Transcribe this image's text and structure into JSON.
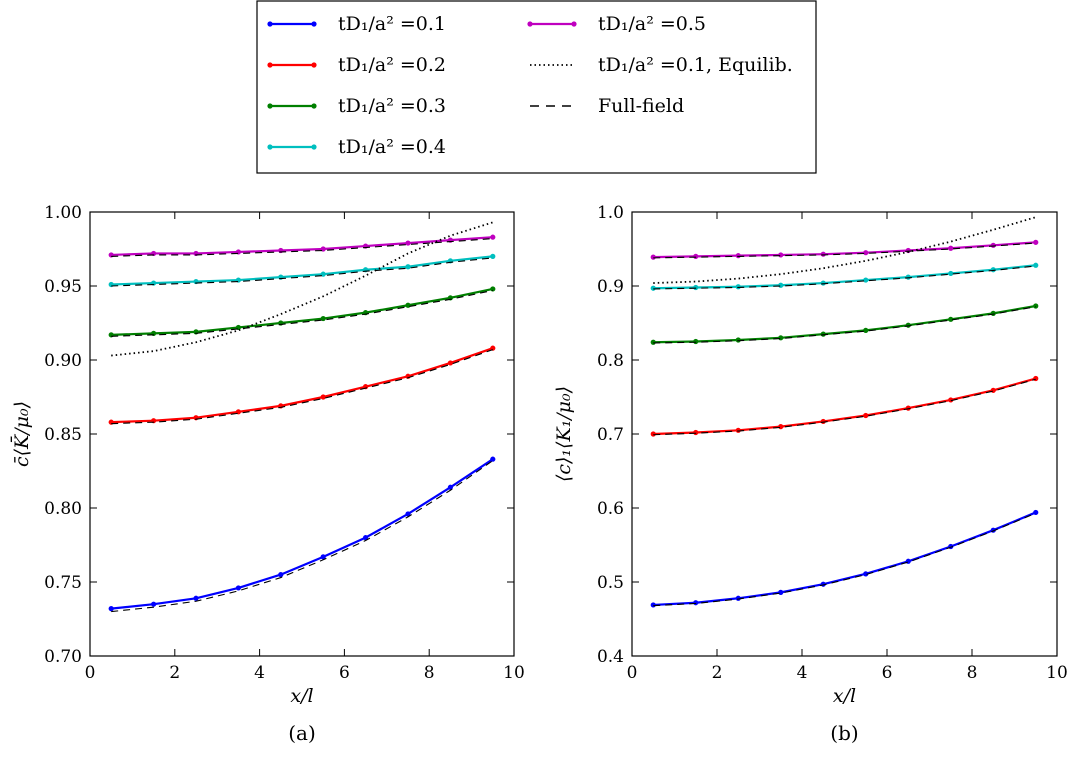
{
  "legend": {
    "entries": [
      {
        "label": "tD₁/a² =0.1",
        "color": "#0000ff",
        "style": "solid-marker"
      },
      {
        "label": "tD₁/a² =0.2",
        "color": "#ff0000",
        "style": "solid-marker"
      },
      {
        "label": "tD₁/a² =0.3",
        "color": "#007f00",
        "style": "solid-marker"
      },
      {
        "label": "tD₁/a² =0.4",
        "color": "#00bfbf",
        "style": "solid-marker"
      },
      {
        "label": "tD₁/a² =0.5",
        "color": "#bf00bf",
        "style": "solid-marker"
      },
      {
        "label": "tD₁/a² =0.1, Equilib.",
        "color": "#000000",
        "style": "dotted"
      },
      {
        "label": "Full-field",
        "color": "#000000",
        "style": "dashed"
      }
    ]
  },
  "chart_data": [
    {
      "type": "line",
      "caption": "(a)",
      "xlabel": "x/l",
      "ylabel": "c̄⟨K̄/μ₀⟩",
      "xlim": [
        0,
        10
      ],
      "ylim": [
        0.7,
        1.0
      ],
      "xticks": [
        "0",
        "2",
        "4",
        "6",
        "8",
        "10"
      ],
      "yticks": [
        "0.70",
        "0.75",
        "0.80",
        "0.85",
        "0.90",
        "0.95",
        "1.00"
      ],
      "x": [
        0.5,
        1.5,
        2.5,
        3.5,
        4.5,
        5.5,
        6.5,
        7.5,
        8.5,
        9.5
      ],
      "series": [
        {
          "name": "tD₁/a² =0.1",
          "color": "#0000ff",
          "values": [
            0.732,
            0.735,
            0.739,
            0.746,
            0.755,
            0.767,
            0.78,
            0.796,
            0.814,
            0.833
          ]
        },
        {
          "name": "tD₁/a² =0.2",
          "color": "#ff0000",
          "values": [
            0.858,
            0.859,
            0.861,
            0.865,
            0.869,
            0.875,
            0.882,
            0.889,
            0.898,
            0.908
          ]
        },
        {
          "name": "tD₁/a² =0.3",
          "color": "#007f00",
          "values": [
            0.917,
            0.918,
            0.919,
            0.922,
            0.925,
            0.928,
            0.932,
            0.937,
            0.942,
            0.948
          ]
        },
        {
          "name": "tD₁/a² =0.4",
          "color": "#00bfbf",
          "values": [
            0.951,
            0.952,
            0.953,
            0.954,
            0.956,
            0.958,
            0.961,
            0.963,
            0.967,
            0.97
          ]
        },
        {
          "name": "tD₁/a² =0.5",
          "color": "#bf00bf",
          "values": [
            0.971,
            0.972,
            0.972,
            0.973,
            0.974,
            0.975,
            0.977,
            0.979,
            0.981,
            0.983
          ]
        }
      ],
      "full_field": [
        [
          0.73,
          0.733,
          0.737,
          0.744,
          0.753,
          0.765,
          0.778,
          0.794,
          0.812,
          0.832
        ],
        [
          0.857,
          0.858,
          0.86,
          0.864,
          0.868,
          0.874,
          0.881,
          0.888,
          0.897,
          0.907
        ],
        [
          0.916,
          0.917,
          0.918,
          0.921,
          0.924,
          0.927,
          0.931,
          0.936,
          0.941,
          0.947
        ],
        [
          0.95,
          0.951,
          0.952,
          0.953,
          0.955,
          0.957,
          0.96,
          0.962,
          0.966,
          0.969
        ],
        [
          0.97,
          0.971,
          0.971,
          0.972,
          0.973,
          0.974,
          0.976,
          0.978,
          0.98,
          0.982
        ]
      ],
      "equilibrium": {
        "x": [
          0.5,
          1.5,
          2.5,
          3.5,
          4.5,
          5.5,
          6.5,
          7.5,
          8.5,
          9.5
        ],
        "values": [
          0.903,
          0.906,
          0.912,
          0.92,
          0.931,
          0.943,
          0.957,
          0.972,
          0.984,
          0.993
        ]
      }
    },
    {
      "type": "line",
      "caption": "(b)",
      "xlabel": "x/l",
      "ylabel": "⟨c⟩₁⟨K₁/μ₀⟩",
      "xlim": [
        0,
        10
      ],
      "ylim": [
        0.4,
        1.0
      ],
      "xticks": [
        "0",
        "2",
        "4",
        "6",
        "8",
        "10"
      ],
      "yticks": [
        "0.4",
        "0.5",
        "0.6",
        "0.7",
        "0.8",
        "0.9",
        "1.0"
      ],
      "x": [
        0.5,
        1.5,
        2.5,
        3.5,
        4.5,
        5.5,
        6.5,
        7.5,
        8.5,
        9.5
      ],
      "series": [
        {
          "name": "tD₁/a² =0.1",
          "color": "#0000ff",
          "values": [
            0.469,
            0.472,
            0.478,
            0.486,
            0.497,
            0.511,
            0.528,
            0.548,
            0.57,
            0.594
          ]
        },
        {
          "name": "tD₁/a² =0.2",
          "color": "#ff0000",
          "values": [
            0.7,
            0.702,
            0.705,
            0.71,
            0.717,
            0.725,
            0.735,
            0.746,
            0.759,
            0.775
          ]
        },
        {
          "name": "tD₁/a² =0.3",
          "color": "#007f00",
          "values": [
            0.824,
            0.825,
            0.827,
            0.83,
            0.835,
            0.84,
            0.847,
            0.855,
            0.863,
            0.873
          ]
        },
        {
          "name": "tD₁/a² =0.4",
          "color": "#00bfbf",
          "values": [
            0.897,
            0.898,
            0.899,
            0.901,
            0.904,
            0.908,
            0.912,
            0.917,
            0.922,
            0.928
          ]
        },
        {
          "name": "tD₁/a² =0.5",
          "color": "#bf00bf",
          "values": [
            0.939,
            0.94,
            0.941,
            0.942,
            0.943,
            0.945,
            0.948,
            0.951,
            0.955,
            0.959
          ]
        }
      ],
      "full_field": [
        [
          0.468,
          0.471,
          0.477,
          0.485,
          0.496,
          0.51,
          0.527,
          0.547,
          0.569,
          0.593
        ],
        [
          0.699,
          0.701,
          0.704,
          0.709,
          0.716,
          0.724,
          0.734,
          0.745,
          0.758,
          0.774
        ],
        [
          0.823,
          0.824,
          0.826,
          0.829,
          0.834,
          0.839,
          0.846,
          0.854,
          0.862,
          0.872
        ],
        [
          0.896,
          0.897,
          0.898,
          0.9,
          0.903,
          0.907,
          0.911,
          0.916,
          0.921,
          0.927
        ],
        [
          0.938,
          0.939,
          0.94,
          0.941,
          0.942,
          0.944,
          0.947,
          0.95,
          0.954,
          0.958
        ]
      ],
      "equilibrium": {
        "x": [
          0.5,
          1.5,
          2.5,
          3.5,
          4.5,
          5.5,
          6.5,
          7.5,
          8.5,
          9.5
        ],
        "values": [
          0.904,
          0.906,
          0.91,
          0.916,
          0.924,
          0.934,
          0.946,
          0.96,
          0.976,
          0.993
        ]
      }
    }
  ]
}
